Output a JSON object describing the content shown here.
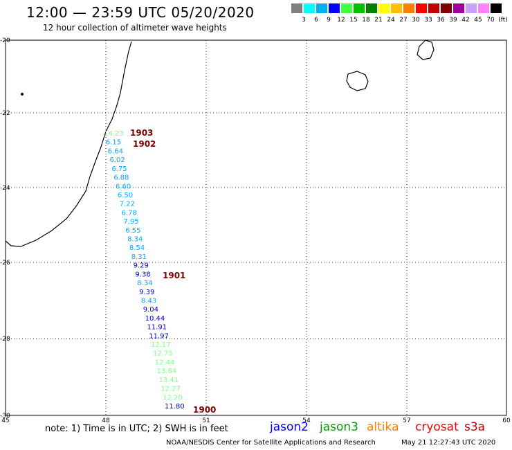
{
  "header": {
    "title": "12:00 — 23:59 UTC 05/20/2020",
    "subtitle": "12 hour collection of altimeter wave heights"
  },
  "legend": {
    "colors": [
      "#808080",
      "#00ffff",
      "#00b0f0",
      "#0000ff",
      "#40ff40",
      "#00c000",
      "#008000",
      "#ffff00",
      "#ffc000",
      "#ff8000",
      "#ff0000",
      "#c00000",
      "#800000",
      "#a000a0",
      "#c8a0ff",
      "#ff80ff",
      "#000000"
    ],
    "labels": [
      "3",
      "6",
      "9",
      "12",
      "15",
      "18",
      "21",
      "24",
      "27",
      "30",
      "33",
      "36",
      "39",
      "42",
      "45",
      "70",
      "(ft)"
    ]
  },
  "map": {
    "lat_labels": [
      "-20",
      "-22",
      "-24",
      "-26",
      "-28",
      "-30"
    ],
    "lon_labels": [
      "45",
      "48",
      "51",
      "54",
      "57",
      "60"
    ],
    "wave_heights": [
      {
        "value": "14.23",
        "color": "#80ff80"
      },
      {
        "value": "6.15",
        "color": "#00aaff"
      },
      {
        "value": "6.64",
        "color": "#00aaff"
      },
      {
        "value": "6.02",
        "color": "#00aaff"
      },
      {
        "value": "6.75",
        "color": "#00aaff"
      },
      {
        "value": "6.88",
        "color": "#00aaff"
      },
      {
        "value": "6.60",
        "color": "#00aaff"
      },
      {
        "value": "6.50",
        "color": "#00aaff"
      },
      {
        "value": "7.22",
        "color": "#00aaff"
      },
      {
        "value": "6.78",
        "color": "#00aaff"
      },
      {
        "value": "7.95",
        "color": "#00aaff"
      },
      {
        "value": "6.55",
        "color": "#00aaff"
      },
      {
        "value": "8.34",
        "color": "#00aaff"
      },
      {
        "value": "8.54",
        "color": "#00aaff"
      },
      {
        "value": "8.31",
        "color": "#00aaff"
      },
      {
        "value": "9.29",
        "color": "#0000cc"
      },
      {
        "value": "9.38",
        "color": "#0000cc"
      },
      {
        "value": "8.34",
        "color": "#00aaff"
      },
      {
        "value": "9.39",
        "color": "#0000cc"
      },
      {
        "value": "8.43",
        "color": "#00aaff"
      },
      {
        "value": "9.04",
        "color": "#0000cc"
      },
      {
        "value": "10.44",
        "color": "#0000cc"
      },
      {
        "value": "11.91",
        "color": "#0000cc"
      },
      {
        "value": "11.97",
        "color": "#0000cc"
      },
      {
        "value": "12.17",
        "color": "#80ff80"
      },
      {
        "value": "12.75",
        "color": "#80ff80"
      },
      {
        "value": "12.44",
        "color": "#80ff80"
      },
      {
        "value": "13.64",
        "color": "#80ff80"
      },
      {
        "value": "13.41",
        "color": "#80ff80"
      },
      {
        "value": "12.27",
        "color": "#80ff80"
      },
      {
        "value": "12.20",
        "color": "#80ff80"
      },
      {
        "value": "11.80",
        "color": "#0000cc"
      }
    ],
    "time_labels": [
      {
        "value": "1903",
        "color": "#800000"
      },
      {
        "value": "1902",
        "color": "#800000"
      },
      {
        "value": "1901",
        "color": "#800000"
      },
      {
        "value": "1900",
        "color": "#800000"
      }
    ]
  },
  "footer": {
    "note": "note:  1) Time is in UTC;  2) SWH is in feet",
    "satellites": [
      {
        "name": "jason2",
        "color": "#0000ff"
      },
      {
        "name": "jason3",
        "color": "#00a000"
      },
      {
        "name": "altika",
        "color": "#ff8000"
      },
      {
        "name": "cryosat",
        "color": "#ff0000"
      },
      {
        "name": "s3a",
        "color": "#c00000"
      }
    ],
    "credit": "NOAA/NESDIS Center for Satellite Applications and Research",
    "timestamp": "May 21 12:27:43 UTC 2020"
  }
}
